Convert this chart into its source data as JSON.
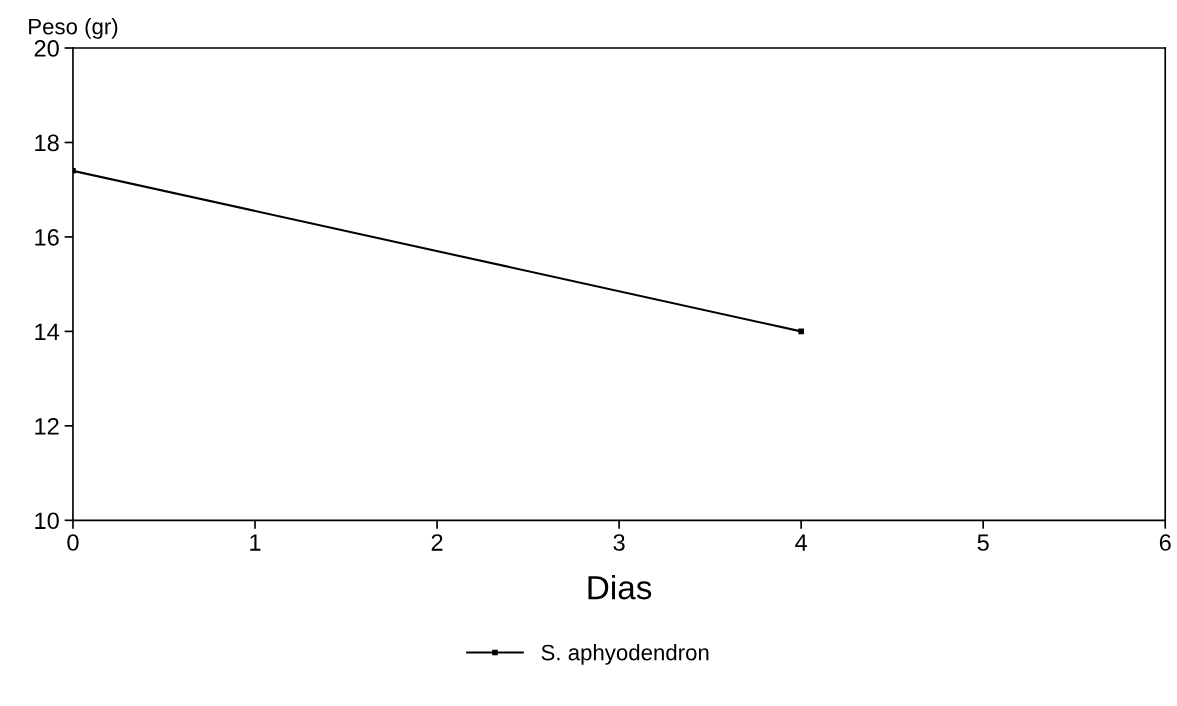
{
  "chart_data": {
    "type": "line",
    "xlabel": "Dias",
    "ylabel": "Peso (gr)",
    "x": [
      0,
      4
    ],
    "series": [
      {
        "name": "S. aphyodendron",
        "color": "#000000",
        "values": [
          17.4,
          14.0
        ]
      }
    ],
    "xlim": [
      0,
      6
    ],
    "xticks": [
      0,
      1,
      2,
      3,
      4,
      5,
      6
    ],
    "ylim": [
      10,
      20
    ],
    "yticks": [
      10,
      12,
      14,
      16,
      18,
      20
    ],
    "legend": "bottom",
    "marker": "square",
    "line_style": "solid"
  }
}
